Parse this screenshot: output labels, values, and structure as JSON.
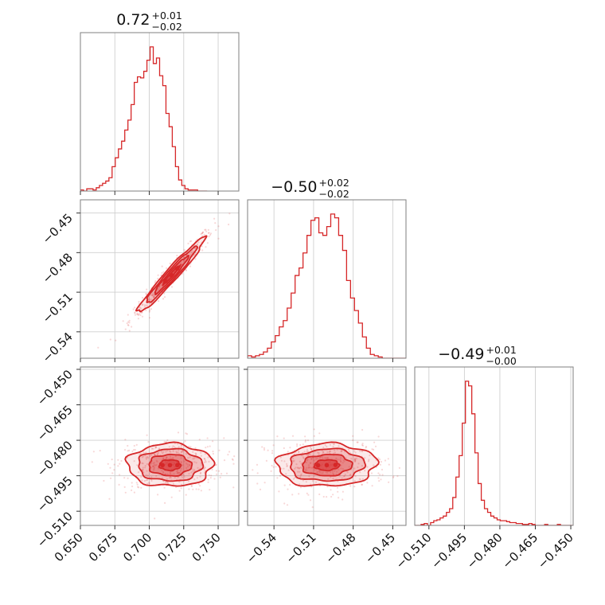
{
  "chart_data": {
    "type": "corner",
    "color": "#d62728",
    "parameters": [
      {
        "title_value": "0.72",
        "title_upper": "+0.01",
        "title_lower": "−0.02",
        "range": [
          0.65,
          0.765
        ],
        "ticks": [
          0.65,
          0.675,
          0.7,
          0.725,
          0.75
        ],
        "tick_labels": [
          "0.650",
          "0.675",
          "0.700",
          "0.725",
          "0.750"
        ]
      },
      {
        "title_value": "−0.50",
        "title_upper": "+0.02",
        "title_lower": "−0.02",
        "range": [
          -0.56,
          -0.44
        ],
        "ticks": [
          -0.54,
          -0.51,
          -0.48,
          -0.45
        ],
        "tick_labels": [
          "−0.54",
          "−0.51",
          "−0.48",
          "−0.45"
        ],
        "y_tick_labels": [
          "−0.45",
          "−0.48",
          "−0.51",
          "−0.54"
        ]
      },
      {
        "title_value": "−0.49",
        "title_upper": "+0.01",
        "title_lower": "−0.00",
        "range": [
          -0.516,
          -0.449
        ],
        "ticks": [
          -0.51,
          -0.495,
          -0.48,
          -0.465,
          -0.45
        ],
        "tick_labels": [
          "−0.510",
          "−0.495",
          "−0.480",
          "−0.465",
          "−0.450"
        ]
      }
    ],
    "histograms": [
      {
        "param": 0,
        "bin_edges_start": 0.65,
        "bin_width": 0.0023,
        "values": [
          1,
          0,
          2,
          2,
          1,
          3,
          5,
          7,
          9,
          12,
          22,
          30,
          38,
          45,
          55,
          64,
          78,
          98,
          103,
          102,
          108,
          118,
          130,
          115,
          120,
          104,
          95,
          70,
          58,
          40,
          22,
          10,
          5,
          2,
          1,
          1,
          1,
          0,
          0,
          0
        ]
      },
      {
        "param": 1,
        "bin_edges_start": -0.56,
        "bin_width": 0.003,
        "values": [
          2,
          1,
          2,
          3,
          5,
          8,
          13,
          18,
          25,
          30,
          40,
          52,
          66,
          72,
          84,
          98,
          110,
          112,
          100,
          98,
          105,
          115,
          112,
          98,
          86,
          62,
          48,
          38,
          28,
          17,
          8,
          3,
          2,
          1,
          0,
          0,
          0,
          0,
          0,
          0
        ]
      },
      {
        "param": 2,
        "bin_edges_start": -0.516,
        "bin_width": 0.00134,
        "values": [
          0,
          0,
          1,
          2,
          0,
          3,
          5,
          6,
          8,
          10,
          14,
          18,
          30,
          52,
          75,
          110,
          155,
          150,
          120,
          78,
          45,
          27,
          18,
          14,
          10,
          8,
          6,
          5,
          5,
          4,
          3,
          3,
          2,
          2,
          1,
          1,
          2,
          1,
          0,
          0,
          0,
          1,
          0,
          0,
          0,
          1,
          0,
          0,
          0,
          0
        ]
      }
    ],
    "joint_2d": [
      {
        "x_param": 0,
        "y_param": 1,
        "mean": [
          0.716,
          -0.497
        ],
        "sd": [
          0.0122,
          0.0142
        ],
        "correlation": 0.97,
        "contours_sigma": [
          0.5,
          1,
          1.5,
          2
        ]
      },
      {
        "x_param": 0,
        "y_param": 2,
        "mean": [
          0.715,
          -0.4905
        ],
        "sd": [
          0.0155,
          0.0045
        ],
        "correlation": 0.0,
        "contours_sigma": [
          0.5,
          1,
          1.5,
          2
        ]
      },
      {
        "x_param": 1,
        "y_param": 2,
        "mean": [
          -0.5,
          -0.4905
        ],
        "sd": [
          0.0188,
          0.0045
        ],
        "correlation": 0.05,
        "contours_sigma": [
          0.5,
          1,
          1.5,
          2
        ]
      }
    ],
    "grid": true
  }
}
